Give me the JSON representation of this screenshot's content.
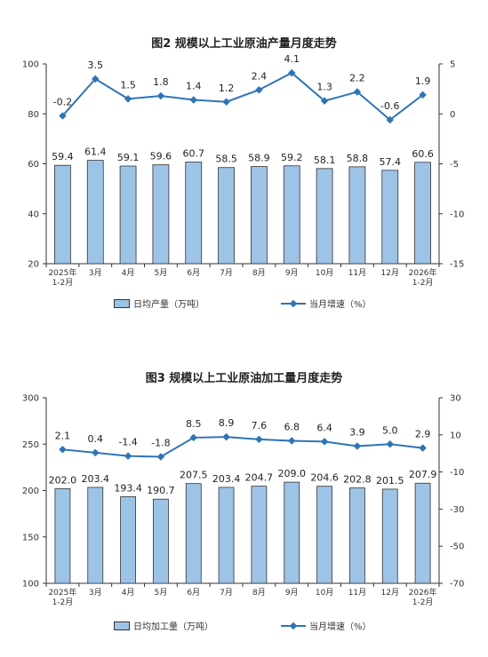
{
  "chart_data": [
    {
      "type": "bar",
      "title": "图2  规模以上工业原油产量月度走势",
      "categories": [
        "2025年\n1-2月",
        "3月",
        "4月",
        "5月",
        "6月",
        "7月",
        "8月",
        "9月",
        "10月",
        "11月",
        "12月",
        "2026年\n1-2月"
      ],
      "series": [
        {
          "name": "日均产量（万吨）",
          "type": "bar",
          "axis": "left",
          "values": [
            59.4,
            61.4,
            59.1,
            59.6,
            60.7,
            58.5,
            58.9,
            59.2,
            58.1,
            58.8,
            57.4,
            60.6
          ]
        },
        {
          "name": "当月增速（%）",
          "type": "line",
          "axis": "right",
          "values": [
            -0.2,
            3.5,
            1.5,
            1.8,
            1.4,
            1.2,
            2.4,
            4.1,
            1.3,
            2.2,
            -0.6,
            1.9
          ]
        }
      ],
      "left_ticks": [
        20,
        40,
        60,
        80,
        100
      ],
      "right_ticks": [
        -15,
        -10,
        -5,
        0,
        5
      ],
      "ylim_left": [
        20,
        100
      ],
      "ylim_right": [
        -15,
        5
      ],
      "legend_placement": "bottom"
    },
    {
      "type": "bar",
      "title": "图3  规模以上工业原油加工量月度走势",
      "categories": [
        "2025年\n1-2月",
        "3月",
        "4月",
        "5月",
        "6月",
        "7月",
        "8月",
        "9月",
        "10月",
        "11月",
        "12月",
        "2026年\n1-2月"
      ],
      "series": [
        {
          "name": "日均加工量（万吨）",
          "type": "bar",
          "axis": "left",
          "values": [
            202.0,
            203.4,
            193.4,
            190.7,
            207.5,
            203.4,
            204.7,
            209.0,
            204.6,
            202.8,
            201.5,
            207.9
          ]
        },
        {
          "name": "当月增速（%）",
          "type": "line",
          "axis": "right",
          "values": [
            2.1,
            0.4,
            -1.4,
            -1.8,
            8.5,
            8.9,
            7.6,
            6.8,
            6.4,
            3.9,
            5.0,
            2.9
          ]
        }
      ],
      "left_ticks": [
        100,
        150,
        200,
        250,
        300
      ],
      "right_ticks": [
        -70,
        -50,
        -30,
        -10,
        10,
        30
      ],
      "ylim_left": [
        100,
        300
      ],
      "ylim_right": [
        -70,
        30
      ],
      "legend_placement": "bottom"
    }
  ],
  "colors": {
    "bar_fill": "#9dc3e6",
    "bar_stroke": "#333333",
    "line": "#2e74b5",
    "axis": "#333333"
  }
}
